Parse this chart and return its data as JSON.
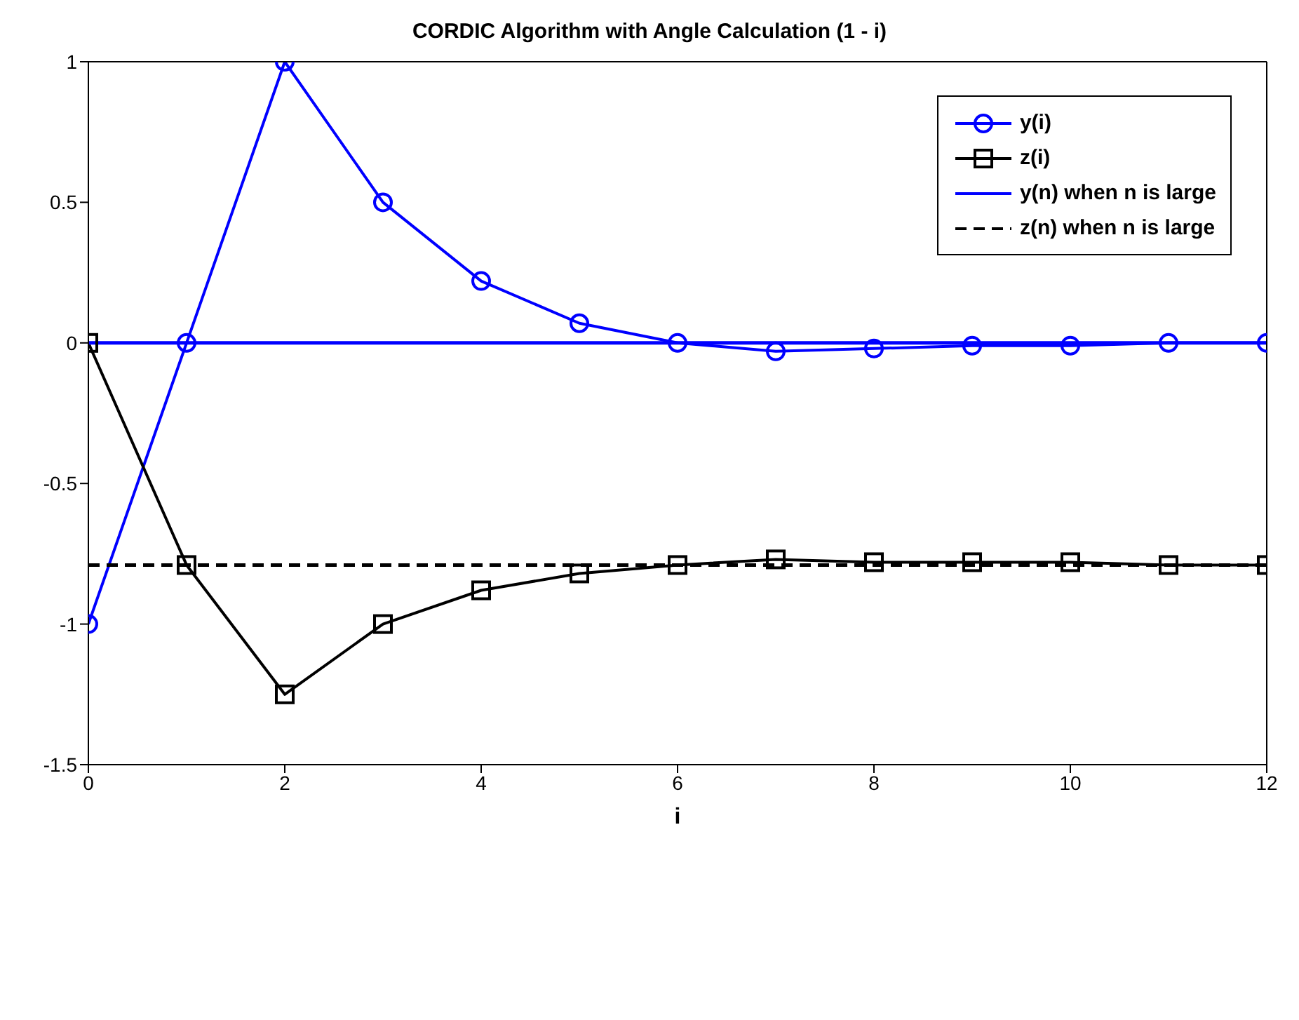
{
  "chart_data": {
    "type": "line",
    "title": "CORDIC Algorithm with Angle Calculation (1 - i)",
    "xlabel": "i",
    "x": [
      0,
      1,
      2,
      3,
      4,
      5,
      6,
      7,
      8,
      9,
      10,
      11,
      12
    ],
    "series": [
      {
        "name": "y(i)",
        "color": "#0000ff",
        "marker": "circle",
        "line_style": "solid",
        "values": [
          -1,
          0,
          1,
          0.5,
          0.22,
          0.07,
          0,
          -0.03,
          -0.02,
          -0.01,
          -0.01,
          0,
          0
        ]
      },
      {
        "name": "z(i)",
        "color": "#000000",
        "marker": "square",
        "line_style": "solid",
        "values": [
          0,
          -0.79,
          -1.25,
          -1,
          -0.88,
          -0.82,
          -0.79,
          -0.77,
          -0.78,
          -0.78,
          -0.78,
          -0.79,
          -0.79
        ]
      },
      {
        "name": "y(n) when n is large",
        "color": "#0000ff",
        "marker": "none",
        "line_style": "solid",
        "values": [
          0,
          0,
          0,
          0,
          0,
          0,
          0,
          0,
          0,
          0,
          0,
          0,
          0
        ]
      },
      {
        "name": "z(n) when n is large",
        "color": "#000000",
        "marker": "none",
        "line_style": "dashed",
        "values": [
          -0.79,
          -0.79,
          -0.79,
          -0.79,
          -0.79,
          -0.79,
          -0.79,
          -0.79,
          -0.79,
          -0.79,
          -0.79,
          -0.79,
          -0.79
        ]
      }
    ],
    "xlim": [
      0,
      12
    ],
    "xticks": [
      0,
      2,
      4,
      6,
      8,
      10,
      12
    ],
    "ylim": [
      -1.5,
      1
    ],
    "yticks": [
      -1.5,
      -1,
      -0.5,
      0,
      0.5,
      1
    ],
    "grid": false,
    "legend": "top right"
  }
}
